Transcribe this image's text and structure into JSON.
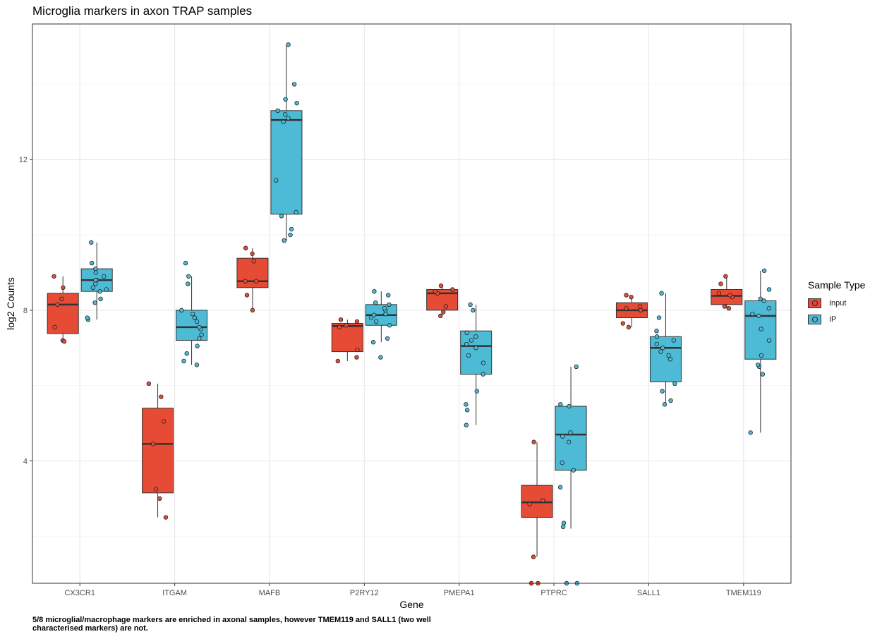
{
  "chart_data": {
    "type": "box",
    "title": "Microglia markers in axon TRAP samples",
    "xlabel": "Gene",
    "ylabel": "log2 Counts",
    "ylim": [
      0.75,
      15.6
    ],
    "yticks": [
      4,
      8,
      12
    ],
    "grid": true,
    "legend": {
      "title": "Sample Type",
      "position": "right"
    },
    "caption": "5/8 microglial/macrophage markers are enriched in axonal samples, however TMEM119 and SALL1 (two well characterised markers) are not.",
    "categories": [
      "CX3CR1",
      "ITGAM",
      "MAFB",
      "P2RY12",
      "PMEPA1",
      "PTPRC",
      "SALL1",
      "TMEM119"
    ],
    "series": [
      {
        "name": "Input",
        "color": "#E64B35",
        "boxes": [
          {
            "q1": 7.38,
            "median": 8.15,
            "q3": 8.45,
            "whisker_low": 7.2,
            "whisker_high": 8.9,
            "points": [
              7.2,
              7.17,
              7.55,
              8.15,
              8.3,
              8.6,
              8.9
            ]
          },
          {
            "q1": 3.15,
            "median": 4.45,
            "q3": 5.4,
            "whisker_low": 2.5,
            "whisker_high": 6.05,
            "points": [
              2.5,
              3.0,
              3.25,
              4.45,
              5.05,
              5.7,
              6.05
            ]
          },
          {
            "q1": 8.6,
            "median": 8.77,
            "q3": 9.38,
            "whisker_low": 8.0,
            "whisker_high": 9.65,
            "points": [
              8.0,
              8.4,
              8.77,
              8.77,
              9.3,
              9.5,
              9.65
            ]
          },
          {
            "q1": 6.9,
            "median": 7.58,
            "q3": 7.65,
            "whisker_low": 6.65,
            "whisker_high": 7.75,
            "points": [
              6.65,
              6.75,
              6.95,
              7.55,
              7.6,
              7.7,
              7.75
            ]
          },
          {
            "q1": 8.0,
            "median": 8.45,
            "q3": 8.55,
            "whisker_low": 7.85,
            "whisker_high": 8.65,
            "points": [
              7.85,
              7.95,
              8.1,
              8.45,
              8.5,
              8.55,
              8.65
            ]
          },
          {
            "q1": 2.5,
            "median": 2.9,
            "q3": 3.35,
            "whisker_low": 1.45,
            "whisker_high": 4.5,
            "points": [
              0.75,
              0.75,
              1.45,
              2.85,
              2.95,
              4.5
            ]
          },
          {
            "q1": 7.8,
            "median": 8.0,
            "q3": 8.2,
            "whisker_low": 7.55,
            "whisker_high": 8.4,
            "points": [
              7.55,
              7.65,
              8.0,
              8.05,
              8.1,
              8.35,
              8.4
            ]
          },
          {
            "q1": 8.15,
            "median": 8.38,
            "q3": 8.55,
            "whisker_low": 8.05,
            "whisker_high": 8.9,
            "points": [
              8.05,
              8.1,
              8.35,
              8.4,
              8.45,
              8.7,
              8.9
            ]
          }
        ]
      },
      {
        "name": "IP",
        "color": "#4DBBD5",
        "boxes": [
          {
            "q1": 8.5,
            "median": 8.8,
            "q3": 9.1,
            "whisker_low": 7.75,
            "whisker_high": 9.8,
            "points": [
              7.75,
              7.8,
              8.2,
              8.3,
              8.5,
              8.55,
              8.6,
              8.7,
              8.8,
              8.8,
              8.9,
              9.0,
              9.1,
              9.25,
              9.8
            ]
          },
          {
            "q1": 7.2,
            "median": 7.55,
            "q3": 8.0,
            "whisker_low": 6.55,
            "whisker_high": 8.9,
            "points": [
              6.55,
              6.65,
              6.85,
              7.05,
              7.25,
              7.35,
              7.5,
              7.55,
              7.7,
              7.8,
              7.9,
              8.0,
              8.7,
              8.9,
              9.25
            ]
          },
          {
            "q1": 10.55,
            "median": 13.05,
            "q3": 13.3,
            "whisker_low": 9.85,
            "whisker_high": 15.05,
            "points": [
              9.85,
              10.0,
              10.15,
              10.5,
              10.6,
              11.45,
              13.0,
              13.1,
              13.2,
              13.3,
              13.5,
              13.6,
              14.0,
              15.05
            ]
          },
          {
            "q1": 7.6,
            "median": 7.87,
            "q3": 8.15,
            "whisker_low": 7.15,
            "whisker_high": 8.5,
            "points": [
              6.75,
              7.15,
              7.25,
              7.6,
              7.7,
              7.8,
              7.87,
              7.9,
              8.0,
              8.05,
              8.15,
              8.2,
              8.4,
              8.5
            ]
          },
          {
            "q1": 6.3,
            "median": 7.05,
            "q3": 7.45,
            "whisker_low": 4.95,
            "whisker_high": 8.15,
            "points": [
              4.95,
              5.35,
              5.5,
              5.85,
              6.3,
              6.6,
              6.8,
              7.0,
              7.1,
              7.2,
              7.3,
              7.4,
              8.0,
              8.15
            ]
          },
          {
            "q1": 3.75,
            "median": 4.7,
            "q3": 5.45,
            "whisker_low": 2.2,
            "whisker_high": 6.5,
            "points": [
              0.75,
              0.75,
              2.25,
              2.35,
              3.3,
              3.75,
              3.95,
              4.5,
              4.65,
              4.75,
              5.45,
              5.5,
              6.5
            ]
          },
          {
            "q1": 6.1,
            "median": 7.0,
            "q3": 7.3,
            "whisker_low": 5.5,
            "whisker_high": 8.45,
            "points": [
              5.5,
              5.6,
              5.85,
              6.05,
              6.7,
              6.8,
              6.9,
              7.0,
              7.1,
              7.2,
              7.3,
              7.45,
              7.8,
              8.45
            ]
          },
          {
            "q1": 6.7,
            "median": 7.85,
            "q3": 8.25,
            "whisker_low": 4.75,
            "whisker_high": 9.05,
            "points": [
              4.75,
              6.3,
              6.5,
              6.55,
              6.8,
              7.2,
              7.5,
              7.85,
              7.9,
              8.05,
              8.25,
              8.3,
              8.55,
              9.05
            ]
          }
        ]
      }
    ]
  }
}
